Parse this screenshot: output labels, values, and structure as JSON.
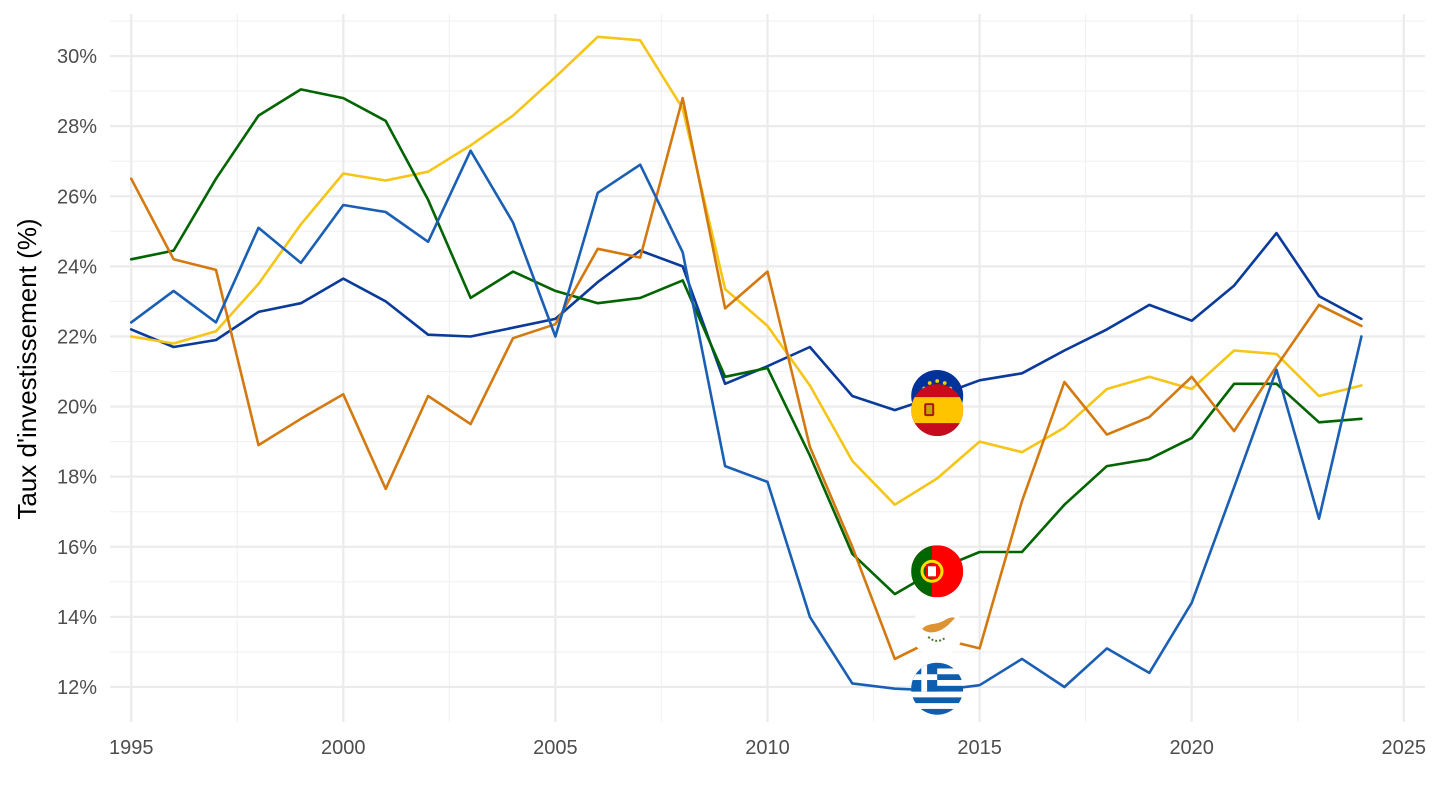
{
  "chart_data": {
    "type": "line",
    "title": "",
    "xlabel": "",
    "ylabel": "Taux d'investissement (%)",
    "xlim": [
      1994.5,
      2025.5
    ],
    "ylim": [
      11,
      31.2
    ],
    "x_ticks": [
      "1995",
      "2000",
      "2005",
      "2010",
      "2015",
      "2020",
      "2025"
    ],
    "y_ticks": [
      "12%",
      "14%",
      "16%",
      "18%",
      "20%",
      "22%",
      "24%",
      "26%",
      "28%",
      "30%"
    ],
    "grid": true,
    "x": [
      1995,
      1996,
      1997,
      1998,
      1999,
      2000,
      2001,
      2002,
      2003,
      2004,
      2005,
      2006,
      2007,
      2008,
      2009,
      2010,
      2011,
      2012,
      2013,
      2014,
      2015,
      2016,
      2017,
      2018,
      2019,
      2020,
      2021,
      2022,
      2023,
      2024
    ],
    "series": [
      {
        "color": "#0a3a9a",
        "flag": "eu-flag-icon",
        "values": [
          22.2,
          21.7,
          21.9,
          22.7,
          22.95,
          23.65,
          23.0,
          22.05,
          22.0,
          22.25,
          22.5,
          23.55,
          24.45,
          24.0,
          20.65,
          21.15,
          21.7,
          20.3,
          19.9,
          20.3,
          20.75,
          20.95,
          21.6,
          22.2,
          22.9,
          22.45,
          23.45,
          24.95,
          23.15,
          22.5
        ]
      },
      {
        "color": "#f5c518",
        "flag": "spain-flag-icon",
        "values": [
          22.0,
          21.8,
          22.15,
          23.5,
          25.2,
          26.65,
          26.45,
          26.7,
          27.45,
          28.3,
          29.4,
          30.55,
          30.45,
          28.5,
          23.35,
          22.3,
          20.6,
          18.45,
          17.2,
          17.95,
          19.0,
          18.7,
          19.4,
          20.5,
          20.85,
          20.5,
          21.6,
          21.5,
          20.3,
          20.6
        ]
      },
      {
        "color": "#006400",
        "flag": "portugal-flag-icon",
        "values": [
          24.2,
          24.45,
          26.5,
          28.3,
          29.05,
          28.8,
          28.15,
          25.9,
          23.1,
          23.85,
          23.3,
          22.95,
          23.1,
          23.6,
          20.85,
          21.1,
          18.6,
          15.8,
          14.65,
          15.35,
          15.85,
          15.85,
          17.2,
          18.3,
          18.5,
          19.1,
          20.65,
          20.65,
          19.55,
          19.65
        ]
      },
      {
        "color": "#d4790f",
        "flag": "cyprus-flag-icon",
        "values": [
          26.5,
          24.2,
          23.9,
          18.9,
          19.65,
          20.35,
          17.65,
          20.3,
          19.5,
          21.95,
          22.35,
          24.5,
          24.25,
          28.8,
          22.8,
          23.85,
          18.85,
          16.0,
          12.8,
          13.4,
          13.1,
          17.3,
          20.7,
          19.2,
          19.7,
          20.85,
          19.3,
          21.15,
          22.9,
          22.3
        ]
      },
      {
        "color": "#1a5fb4",
        "flag": "greece-flag-icon",
        "values": [
          22.4,
          23.3,
          22.4,
          25.1,
          24.1,
          25.75,
          25.55,
          24.7,
          27.3,
          25.25,
          22.0,
          26.1,
          26.9,
          24.4,
          18.3,
          17.85,
          14.0,
          12.1,
          11.95,
          11.9,
          12.05,
          12.8,
          12.0,
          13.1,
          12.4,
          14.4,
          17.7,
          21.05,
          16.8,
          22.0
        ]
      }
    ],
    "flag_markers": [
      {
        "name": "eu-flag-icon",
        "x": 2014,
        "y": 20.3
      },
      {
        "name": "spain-flag-icon",
        "x": 2014,
        "y": 19.9
      },
      {
        "name": "portugal-flag-icon",
        "x": 2014,
        "y": 15.3
      },
      {
        "name": "cyprus-flag-icon",
        "x": 2014,
        "y": 13.6
      },
      {
        "name": "greece-flag-icon",
        "x": 2014,
        "y": 11.95
      }
    ]
  }
}
